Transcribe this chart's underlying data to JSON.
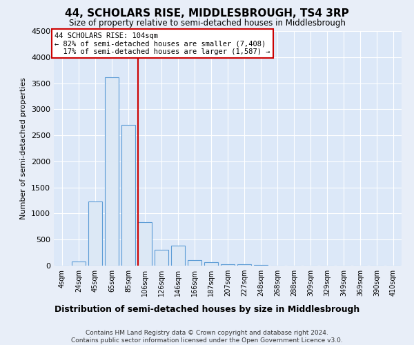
{
  "title": "44, SCHOLARS RISE, MIDDLESBROUGH, TS4 3RP",
  "subtitle": "Size of property relative to semi-detached houses in Middlesbrough",
  "xlabel": "Distribution of semi-detached houses by size in Middlesbrough",
  "ylabel": "Number of semi-detached properties",
  "footer": "Contains HM Land Registry data © Crown copyright and database right 2024.\nContains public sector information licensed under the Open Government Licence v3.0.",
  "bin_labels": [
    "4sqm",
    "24sqm",
    "45sqm",
    "65sqm",
    "85sqm",
    "106sqm",
    "126sqm",
    "146sqm",
    "166sqm",
    "187sqm",
    "207sqm",
    "227sqm",
    "248sqm",
    "268sqm",
    "288sqm",
    "309sqm",
    "329sqm",
    "349sqm",
    "369sqm",
    "390sqm",
    "410sqm"
  ],
  "bar_values": [
    0,
    80,
    1230,
    3610,
    2700,
    840,
    310,
    390,
    110,
    70,
    30,
    20,
    10,
    5,
    2,
    1,
    0,
    0,
    0,
    0,
    0
  ],
  "property_bin_index": 5,
  "property_size": "104sqm",
  "pct_smaller": 82,
  "count_smaller": 7408,
  "pct_larger": 17,
  "count_larger": 1587,
  "bar_color": "#dce8f5",
  "bar_edge_color": "#5b9bd5",
  "line_color": "#cc0000",
  "ylim": [
    0,
    4500
  ],
  "yticks": [
    0,
    500,
    1000,
    1500,
    2000,
    2500,
    3000,
    3500,
    4000,
    4500
  ],
  "background_color": "#e8eef8",
  "grid_color": "#c8d4e8",
  "plot_bg_color": "#dce8f8"
}
